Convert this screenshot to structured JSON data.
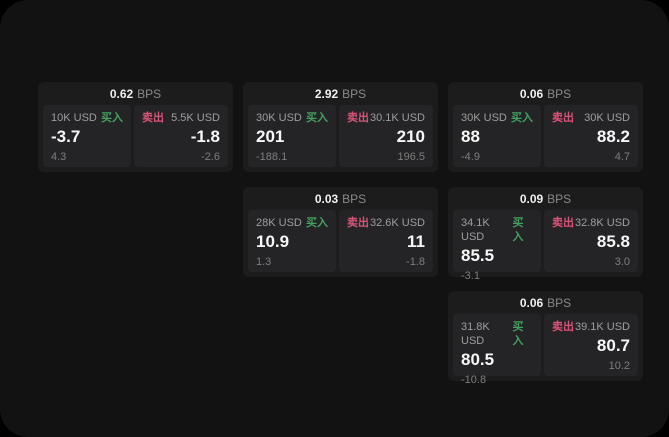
{
  "colors": {
    "page_bg": "#121212",
    "card_bg": "#1c1c1d",
    "panel_bg": "#242426",
    "buy_color": "#43a05f",
    "sell_color": "#d65477"
  },
  "labels": {
    "bps": "BPS",
    "buy": "买入",
    "sell": "卖出"
  },
  "cards": [
    {
      "bps": "0.62",
      "buy": {
        "amount": "10K USD",
        "value": "-3.7",
        "delta": "4.3"
      },
      "sell": {
        "amount": "5.5K USD",
        "value": "-1.8",
        "delta": "-2.6"
      }
    },
    {
      "bps": "2.92",
      "buy": {
        "amount": "30K USD",
        "value": "201",
        "delta": "-188.1"
      },
      "sell": {
        "amount": "30.1K USD",
        "value": "210",
        "delta": "196.5"
      }
    },
    {
      "bps": "0.06",
      "buy": {
        "amount": "30K USD",
        "value": "88",
        "delta": "-4.9"
      },
      "sell": {
        "amount": "30K USD",
        "value": "88.2",
        "delta": "4.7"
      }
    },
    {
      "bps": "0.03",
      "buy": {
        "amount": "28K USD",
        "value": "10.9",
        "delta": "1.3"
      },
      "sell": {
        "amount": "32.6K USD",
        "value": "11",
        "delta": "-1.8"
      }
    },
    {
      "bps": "0.09",
      "buy": {
        "amount": "34.1K USD",
        "value": "85.5",
        "delta": "-3.1"
      },
      "sell": {
        "amount": "32.8K USD",
        "value": "85.8",
        "delta": "3.0"
      }
    },
    {
      "bps": "0.06",
      "buy": {
        "amount": "31.8K USD",
        "value": "80.5",
        "delta": "-10.8"
      },
      "sell": {
        "amount": "39.1K USD",
        "value": "80.7",
        "delta": "10.2"
      }
    }
  ]
}
